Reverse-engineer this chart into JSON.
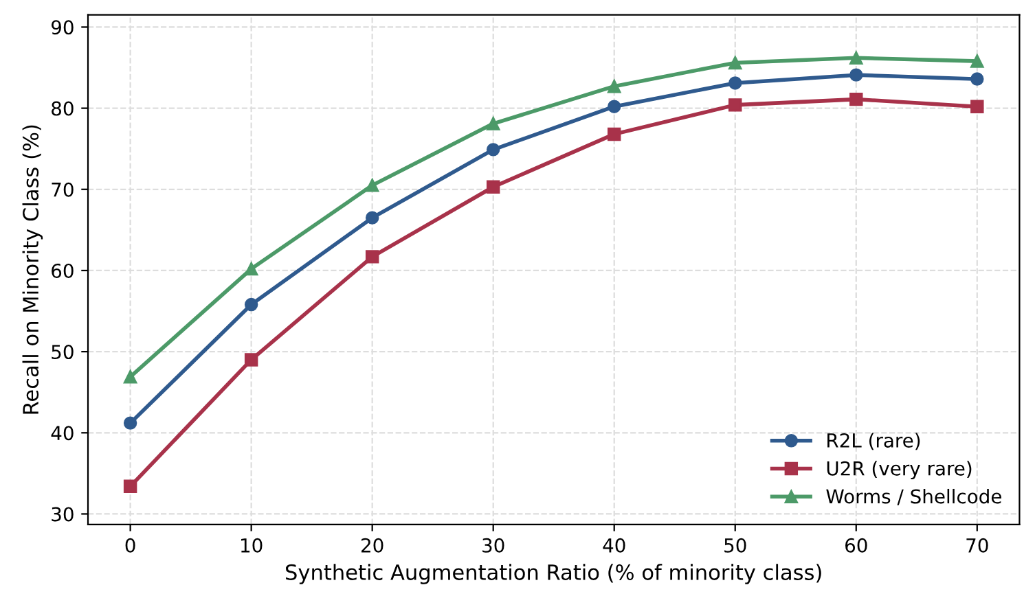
{
  "chart_data": {
    "type": "line",
    "xlabel": "Synthetic Augmentation Ratio (% of minority class)",
    "ylabel": "Recall on Minority Class (%)",
    "x": [
      0,
      10,
      20,
      30,
      40,
      50,
      60,
      70
    ],
    "series": [
      {
        "name": "R2L (rare)",
        "color": "#2f5a8e",
        "marker": "circle",
        "values": [
          41.2,
          55.8,
          66.5,
          74.9,
          80.2,
          83.1,
          84.1,
          83.6
        ]
      },
      {
        "name": "U2R (very rare)",
        "color": "#a8324a",
        "marker": "square",
        "values": [
          33.4,
          49.0,
          61.7,
          70.3,
          76.8,
          80.4,
          81.1,
          80.2
        ]
      },
      {
        "name": "Worms / Shellcode",
        "color": "#4c9a68",
        "marker": "triangle",
        "values": [
          46.9,
          60.2,
          70.5,
          78.1,
          82.7,
          85.6,
          86.2,
          85.8
        ]
      }
    ],
    "xlim": [
      -3.5,
      73.5
    ],
    "xticks": [
      0,
      10,
      20,
      30,
      40,
      50,
      60,
      70
    ],
    "ylim": [
      28.7,
      91.5
    ],
    "yticks": [
      30,
      40,
      50,
      60,
      70,
      80,
      90
    ],
    "grid": true,
    "legend": "bottom right",
    "line_style": "solid"
  }
}
